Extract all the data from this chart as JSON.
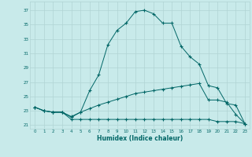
{
  "xlabel": "Humidex (Indice chaleur)",
  "bg_color": "#c8eaea",
  "line_color": "#006666",
  "grid_color": "#b0d4d4",
  "xlim": [
    -0.5,
    23.5
  ],
  "ylim": [
    20.5,
    38.2
  ],
  "yticks": [
    21,
    23,
    25,
    27,
    29,
    31,
    33,
    35,
    37
  ],
  "xticks": [
    0,
    1,
    2,
    3,
    4,
    5,
    6,
    7,
    8,
    9,
    10,
    11,
    12,
    13,
    14,
    15,
    16,
    17,
    18,
    19,
    20,
    21,
    22,
    23
  ],
  "line1_x": [
    0,
    1,
    2,
    3,
    4,
    5,
    6,
    7,
    8,
    9,
    10,
    11,
    12,
    13,
    14,
    15,
    16,
    17,
    18,
    19,
    20,
    21,
    22,
    23
  ],
  "line1_y": [
    23.5,
    23.0,
    22.8,
    22.8,
    22.1,
    22.8,
    25.8,
    28.0,
    32.2,
    34.2,
    35.2,
    36.8,
    37.0,
    36.5,
    35.2,
    35.2,
    32.0,
    30.5,
    29.5,
    26.5,
    26.2,
    24.0,
    23.8,
    21.2
  ],
  "line2_x": [
    0,
    1,
    2,
    3,
    4,
    5,
    6,
    7,
    8,
    9,
    10,
    11,
    12,
    13,
    14,
    15,
    16,
    17,
    18,
    19,
    20,
    21,
    22,
    23
  ],
  "line2_y": [
    23.5,
    23.0,
    22.8,
    22.8,
    22.2,
    22.8,
    23.3,
    23.8,
    24.2,
    24.6,
    25.0,
    25.4,
    25.6,
    25.8,
    26.0,
    26.2,
    26.4,
    26.6,
    26.8,
    24.5,
    24.5,
    24.2,
    22.5,
    21.2
  ],
  "line3_x": [
    0,
    1,
    2,
    3,
    4,
    5,
    6,
    7,
    8,
    9,
    10,
    11,
    12,
    13,
    14,
    15,
    16,
    17,
    18,
    19,
    20,
    21,
    22,
    23
  ],
  "line3_y": [
    23.5,
    23.0,
    22.8,
    22.8,
    21.8,
    21.8,
    21.8,
    21.8,
    21.8,
    21.8,
    21.8,
    21.8,
    21.8,
    21.8,
    21.8,
    21.8,
    21.8,
    21.8,
    21.8,
    21.8,
    21.5,
    21.5,
    21.5,
    21.2
  ]
}
